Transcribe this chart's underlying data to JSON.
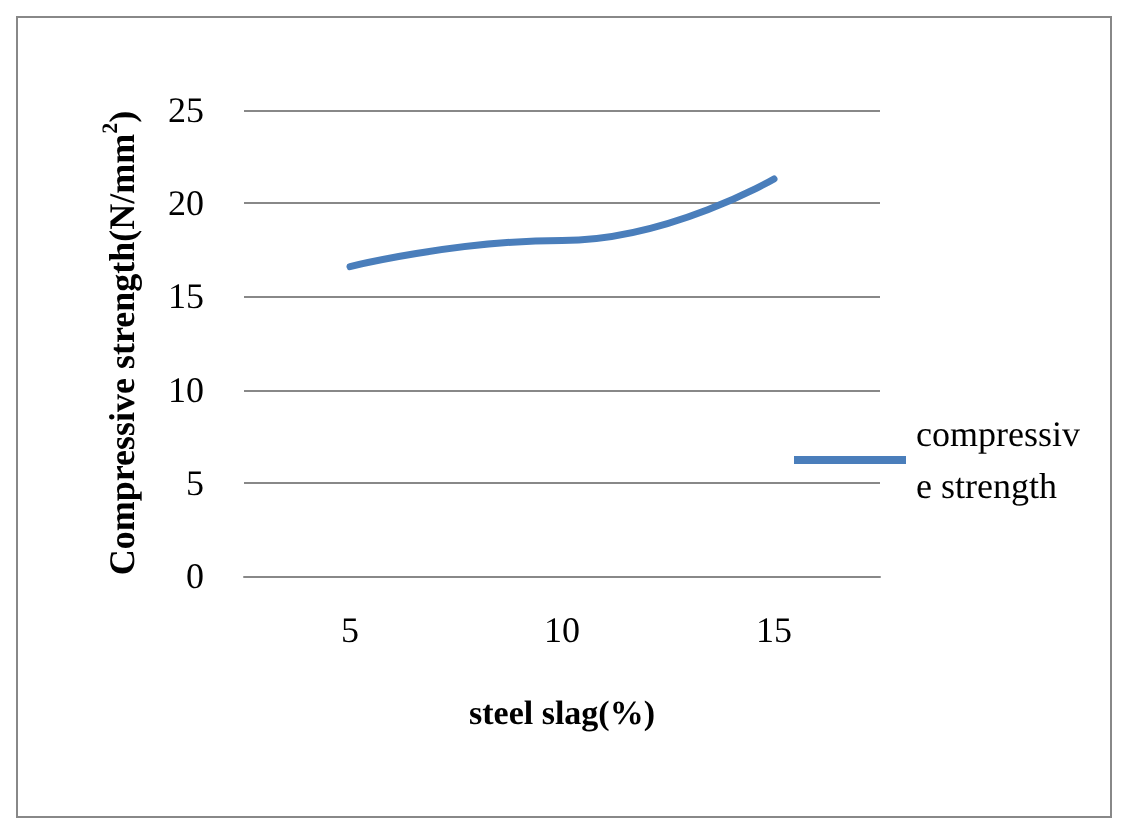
{
  "chart_data": {
    "type": "line",
    "xlabel": "steel slag(%)",
    "ylabel": "Compressive strength(N/mm$^{2}$)",
    "categories": [
      "5",
      "10",
      "15"
    ],
    "series": [
      {
        "name": "compressive strength",
        "color": "#4a7ebb",
        "values": [
          16.6,
          18.0,
          21.3
        ]
      }
    ],
    "ylim": [
      0,
      25
    ],
    "yticks": [
      0,
      5,
      10,
      15,
      20,
      25
    ],
    "grid": "y",
    "legend": "right",
    "marker": "none",
    "line_style": "solid"
  }
}
